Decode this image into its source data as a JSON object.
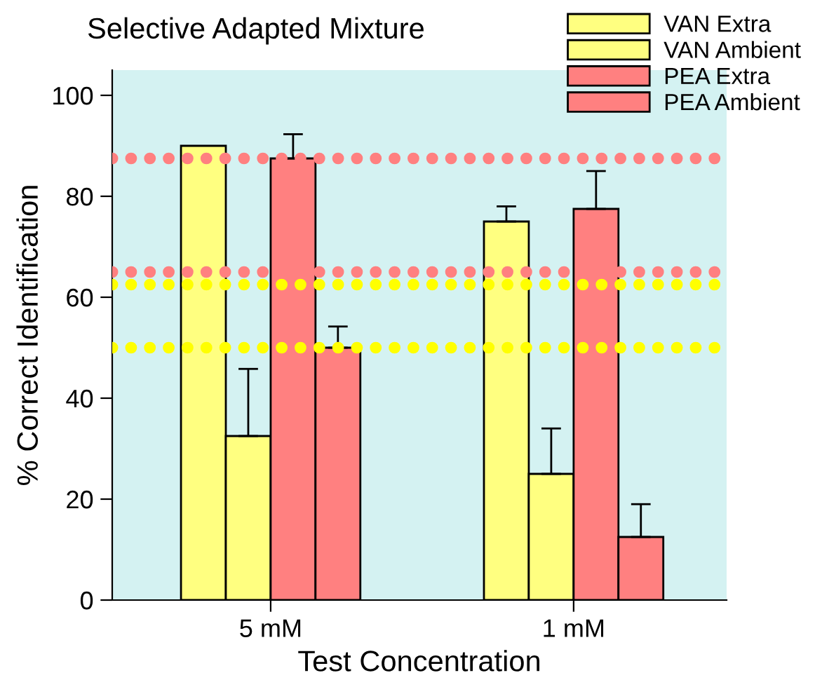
{
  "chart_data": {
    "type": "bar",
    "title": "Selective Adapted Mixture",
    "xlabel": "Test Concentration",
    "ylabel": "% Correct Identification",
    "categories": [
      "5 mM",
      "1 mM"
    ],
    "series": [
      {
        "name": "VAN Extra",
        "color": "#ffff80",
        "values": [
          90,
          75
        ],
        "errors": [
          null,
          [
            75,
            78
          ]
        ]
      },
      {
        "name": "VAN Ambient",
        "color": "#ffff80",
        "values": [
          32.5,
          25
        ],
        "errors": [
          [
            32.5,
            45.8
          ],
          [
            25,
            34
          ]
        ]
      },
      {
        "name": "PEA Extra",
        "color": "#ff8080",
        "values": [
          87.5,
          77.5
        ],
        "errors": [
          [
            87.5,
            92.3
          ],
          [
            77.5,
            85
          ]
        ]
      },
      {
        "name": "PEA Ambient",
        "color": "#ff8080",
        "values": [
          50,
          12.5
        ],
        "errors": [
          [
            50,
            54.2
          ],
          [
            12.5,
            19
          ]
        ]
      }
    ],
    "ylim": [
      0,
      105
    ],
    "yticks": [
      0,
      20,
      40,
      60,
      80,
      100
    ],
    "ref_lines": [
      {
        "axis": "y",
        "value": 87.5,
        "color": "#ff8080",
        "line_style": "dotted"
      },
      {
        "axis": "y",
        "value": 65,
        "color": "#ff8080",
        "line_style": "dotted"
      },
      {
        "axis": "y",
        "value": 62.5,
        "color": "#ffff00",
        "line_style": "dotted"
      },
      {
        "axis": "y",
        "value": 50,
        "color": "#ffff00",
        "line_style": "dotted"
      }
    ],
    "grid": false,
    "legend": "top right"
  }
}
